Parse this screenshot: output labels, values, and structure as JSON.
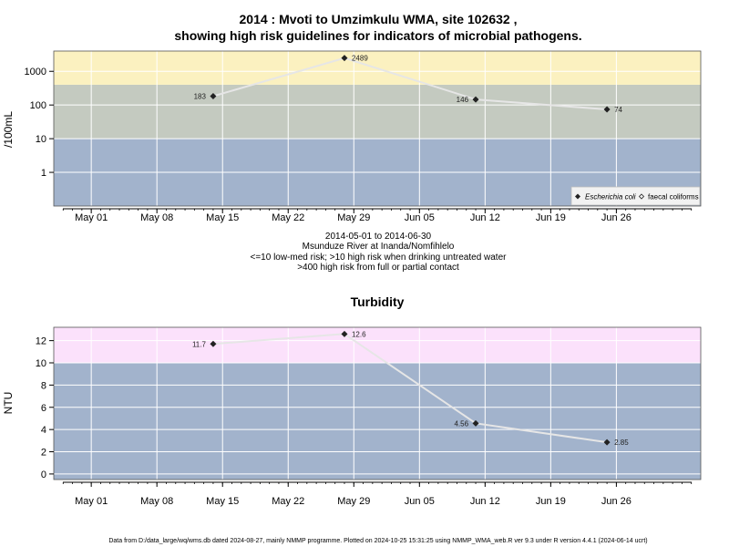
{
  "chart_data": [
    {
      "type": "line",
      "title": "2014 : Mvoti to Umzimkulu WMA, site 102632 ,",
      "subtitle": "showing high risk guidelines for indicators of microbial pathogens.",
      "ylabel": "/100mL",
      "yscale": "log",
      "ylim": [
        0.1,
        4000
      ],
      "xlim": [
        "2014-04-27",
        "2014-07-05"
      ],
      "yticks": [
        1,
        10,
        100,
        1000
      ],
      "ytick_labels": [
        "1",
        "10",
        "100",
        "1000"
      ],
      "xtick_labels": [
        "May 01",
        "May 08",
        "May 15",
        "May 22",
        "May 29",
        "Jun 05",
        "Jun 12",
        "Jun 19",
        "Jun 26"
      ],
      "xtick_dates": [
        "2014-05-01",
        "2014-05-08",
        "2014-05-15",
        "2014-05-22",
        "2014-05-29",
        "2014-06-05",
        "2014-06-12",
        "2014-06-19",
        "2014-06-26"
      ],
      "risk_bands": [
        {
          "from": 0.1,
          "to": 10,
          "color": "#a2b3cc"
        },
        {
          "from": 10,
          "to": 400,
          "color": "#c4cac0"
        },
        {
          "from": 400,
          "to": 4000,
          "color": "#fbf1c0"
        }
      ],
      "series": [
        {
          "name": "Escherichia coli",
          "x": [
            "2014-05-14",
            "2014-05-28",
            "2014-06-11",
            "2014-06-25"
          ],
          "values": [
            183,
            2489,
            146,
            74
          ],
          "labels": [
            "183",
            "2489",
            "146",
            "74"
          ]
        }
      ],
      "legend": {
        "position": "bottom-right",
        "entries": [
          "Escherichia coli",
          "faecal coliforms"
        ]
      },
      "captions": [
        "2014-05-01 to 2014-06-30",
        "Msunduze River at Inanda/Nomfihlelo",
        "<=10 low-med risk; >10 high risk when drinking untreated water",
        ">400 high risk from full or partial contact"
      ]
    },
    {
      "type": "line",
      "title": "Turbidity",
      "ylabel": "NTU",
      "ylim": [
        -0.5,
        13.2
      ],
      "xlim": [
        "2014-04-27",
        "2014-07-05"
      ],
      "yticks": [
        0,
        2,
        4,
        6,
        8,
        10,
        12
      ],
      "ytick_labels": [
        "0",
        "2",
        "4",
        "6",
        "8",
        "10",
        "12"
      ],
      "xtick_labels": [
        "May 01",
        "May 08",
        "May 15",
        "May 22",
        "May 29",
        "Jun 05",
        "Jun 12",
        "Jun 19",
        "Jun 26"
      ],
      "xtick_dates": [
        "2014-05-01",
        "2014-05-08",
        "2014-05-15",
        "2014-05-22",
        "2014-05-29",
        "2014-06-05",
        "2014-06-12",
        "2014-06-19",
        "2014-06-26"
      ],
      "risk_bands": [
        {
          "from": -0.5,
          "to": 10,
          "color": "#a2b3cc"
        },
        {
          "from": 10,
          "to": 13.2,
          "color": "#fbe1fb"
        }
      ],
      "series": [
        {
          "x": [
            "2014-05-14",
            "2014-05-28",
            "2014-06-11",
            "2014-06-25"
          ],
          "values": [
            11.7,
            12.6,
            4.56,
            2.85
          ],
          "labels": [
            "11.7",
            "12.6",
            "4.56",
            "2.85"
          ]
        }
      ]
    }
  ],
  "footer": "Data from D:/data_large/wq/wms.db dated 2024-08-27, mainly NMMP programme. Plotted on 2024-10-25 15:31:25 using NMMP_WMA_web.R ver 9.3 under R version 4.4.1 (2024-06-14 ucrt)",
  "colors": {
    "line": "#e6e6e6",
    "point": "#222222",
    "grid": "#ffffff",
    "axis": "#000000"
  }
}
